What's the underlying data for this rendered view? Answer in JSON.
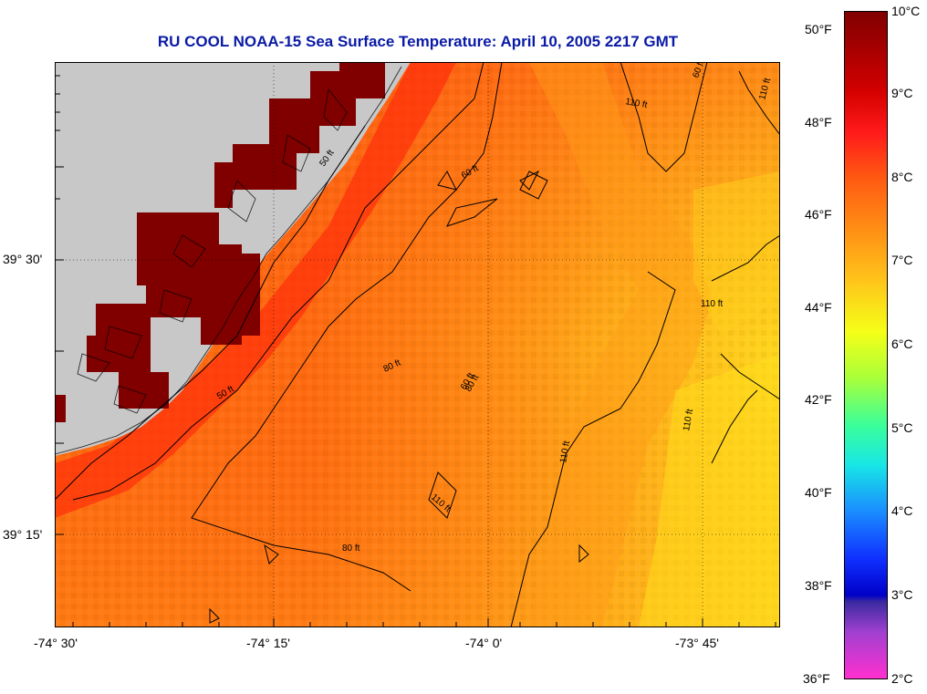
{
  "title": "RU COOL  NOAA-15  Sea Surface Temperature:  April 10, 2005 2217 GMT",
  "axes": {
    "x_ticks": [
      "-74° 30'",
      "-74° 15'",
      "-74° 0'",
      "-73° 45'"
    ],
    "y_ticks": [
      "39° 30'",
      "39° 15'"
    ]
  },
  "contours": {
    "labels": [
      "50 ft",
      "50 ft",
      "60 ft",
      "60 ft",
      "60 ft",
      "80 ft",
      "80 ft",
      "110 ft",
      "110 ft",
      "110 ft",
      "110 ft",
      "110 ft",
      "110 ft",
      "80 ft"
    ]
  },
  "colorbar": {
    "celsius": [
      "10°C",
      "9°C",
      "8°C",
      "7°C",
      "6°C",
      "5°C",
      "4°C",
      "3°C",
      "2°C"
    ],
    "fahrenheit": [
      "50°F",
      "48°F",
      "46°F",
      "44°F",
      "42°F",
      "40°F",
      "38°F",
      "36°F"
    ]
  },
  "colors": {
    "land": "#c8c8c8",
    "title": "#0a1aa6",
    "saturated_nearshore": "#800000"
  }
}
